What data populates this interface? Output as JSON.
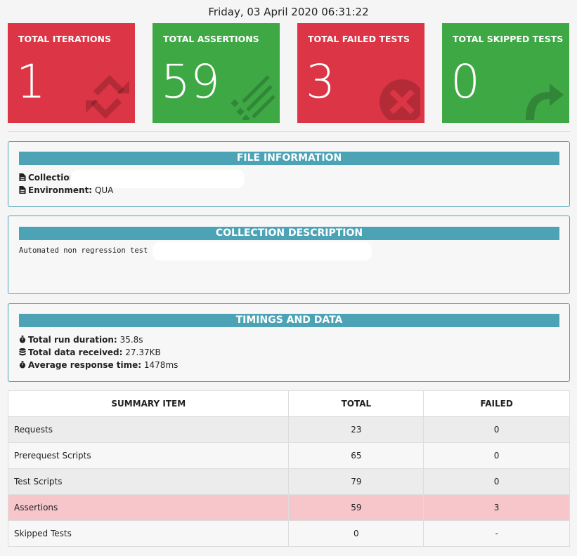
{
  "header": {
    "date": "Friday, 03 April 2020 06:31:22"
  },
  "cards": [
    {
      "label": "TOTAL ITERATIONS",
      "value": "1",
      "color": "#dc3545",
      "icon": "refresh-icon"
    },
    {
      "label": "TOTAL ASSERTIONS",
      "value": "59",
      "color": "#3ea845",
      "icon": "list-check-icon"
    },
    {
      "label": "TOTAL FAILED TESTS",
      "value": "3",
      "color": "#dc3545",
      "icon": "times-circle-icon"
    },
    {
      "label": "TOTAL SKIPPED TESTS",
      "value": "0",
      "color": "#3ea845",
      "icon": "share-arrow-icon"
    }
  ],
  "file_info": {
    "title": "FILE INFORMATION",
    "collection_label": "Collection:",
    "environment_label": "Environment:",
    "environment_value": "QUA"
  },
  "description": {
    "title": "COLLECTION DESCRIPTION",
    "text": "Automated non regression test for"
  },
  "timings": {
    "title": "TIMINGS AND DATA",
    "run_duration_label": "Total run duration:",
    "run_duration_value": "35.8s",
    "data_received_label": "Total data received:",
    "data_received_value": "27.37KB",
    "avg_response_label": "Average response time:",
    "avg_response_value": "1478ms"
  },
  "summary": {
    "headers": [
      "SUMMARY ITEM",
      "TOTAL",
      "FAILED"
    ],
    "rows": [
      {
        "item": "Requests",
        "total": "23",
        "failed": "0"
      },
      {
        "item": "Prerequest Scripts",
        "total": "65",
        "failed": "0"
      },
      {
        "item": "Test Scripts",
        "total": "79",
        "failed": "0"
      },
      {
        "item": "Assertions",
        "total": "59",
        "failed": "3"
      },
      {
        "item": "Skipped Tests",
        "total": "0",
        "failed": "-"
      }
    ]
  }
}
